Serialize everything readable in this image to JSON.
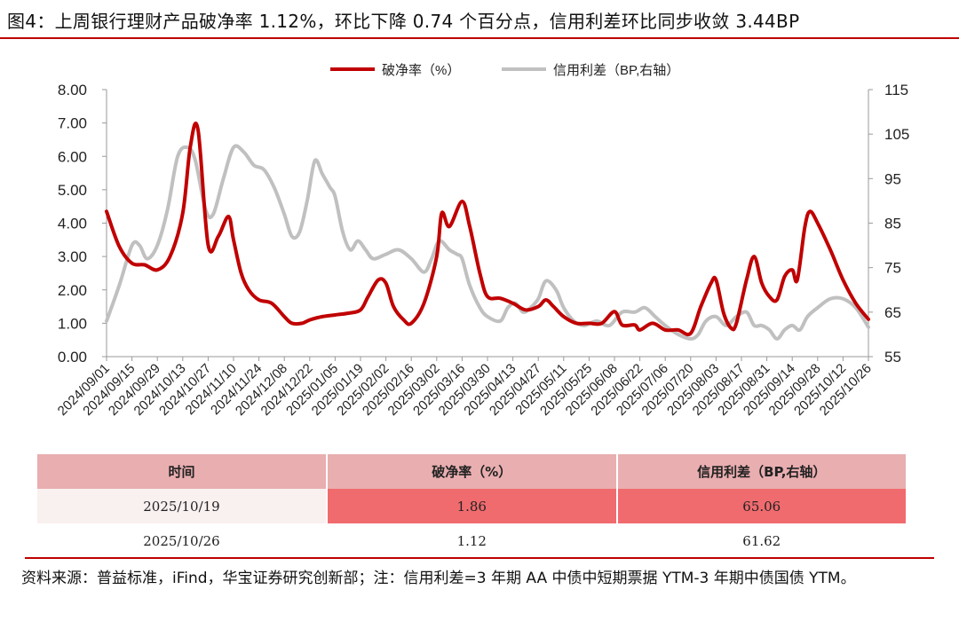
{
  "title": "图4：上周银行理财产品破净率 1.12%，环比下降 0.74 个百分点，信用利差环比同步收敛 3.44BP",
  "chart_data": {
    "type": "line",
    "left_axis": {
      "ylim": [
        0,
        8
      ],
      "ticks": [
        "0.00",
        "1.00",
        "2.00",
        "3.00",
        "4.00",
        "5.00",
        "6.00",
        "7.00",
        "8.00"
      ]
    },
    "right_axis": {
      "ylim": [
        55,
        115
      ],
      "ticks": [
        "55",
        "65",
        "75",
        "85",
        "95",
        "105",
        "115"
      ]
    },
    "x_tick_labels": [
      "2024/09/01",
      "2024/09/15",
      "2024/09/29",
      "2024/10/13",
      "2024/10/27",
      "2024/11/10",
      "2024/11/24",
      "2024/12/08",
      "2024/12/22",
      "2025/01/05",
      "2025/01/19",
      "2025/02/02",
      "2025/02/16",
      "2025/03/02",
      "2025/03/16",
      "2025/03/30",
      "2025/04/13",
      "2025/04/27",
      "2025/05/11",
      "2025/05/25",
      "2025/06/08",
      "2025/06/22",
      "2025/07/06",
      "2025/07/20",
      "2025/08/03",
      "2025/08/17",
      "2025/08/31",
      "2025/09/14",
      "2025/09/28",
      "2025/10/12",
      "2025/10/26"
    ],
    "x_label_positions_are_ticks": true,
    "series": [
      {
        "name": "破净率（%）",
        "axis": "left",
        "color": "#c00000",
        "points": [
          [
            0,
            4.35
          ],
          [
            0.5,
            3.3
          ],
          [
            1,
            2.8
          ],
          [
            1.5,
            2.75
          ],
          [
            2,
            2.6
          ],
          [
            2.5,
            3.0
          ],
          [
            3,
            4.3
          ],
          [
            3.3,
            6.3
          ],
          [
            3.6,
            6.8
          ],
          [
            4,
            3.35
          ],
          [
            4.4,
            3.6
          ],
          [
            4.8,
            4.2
          ],
          [
            5,
            3.5
          ],
          [
            5.3,
            2.5
          ],
          [
            5.6,
            2.0
          ],
          [
            6,
            1.7
          ],
          [
            6.5,
            1.6
          ],
          [
            7,
            1.2
          ],
          [
            7.3,
            1.0
          ],
          [
            7.7,
            1.0
          ],
          [
            8,
            1.1
          ],
          [
            8.5,
            1.2
          ],
          [
            9,
            1.25
          ],
          [
            9.5,
            1.3
          ],
          [
            10,
            1.4
          ],
          [
            10.3,
            1.8
          ],
          [
            10.7,
            2.3
          ],
          [
            11,
            2.2
          ],
          [
            11.3,
            1.5
          ],
          [
            11.7,
            1.1
          ],
          [
            12,
            1.0
          ],
          [
            12.5,
            1.6
          ],
          [
            13,
            3.0
          ],
          [
            13.2,
            4.3
          ],
          [
            13.5,
            3.9
          ],
          [
            14,
            4.65
          ],
          [
            14.3,
            3.9
          ],
          [
            14.7,
            2.5
          ],
          [
            15,
            1.8
          ],
          [
            15.5,
            1.75
          ],
          [
            16,
            1.6
          ],
          [
            16.5,
            1.4
          ],
          [
            17,
            1.5
          ],
          [
            17.3,
            1.7
          ],
          [
            17.6,
            1.5
          ],
          [
            18,
            1.2
          ],
          [
            18.5,
            1.0
          ],
          [
            19,
            1.0
          ],
          [
            19.5,
            1.0
          ],
          [
            20,
            1.35
          ],
          [
            20.3,
            0.95
          ],
          [
            20.8,
            0.95
          ],
          [
            21,
            0.8
          ],
          [
            21.5,
            1.0
          ],
          [
            22,
            0.8
          ],
          [
            22.5,
            0.8
          ],
          [
            23,
            0.7
          ],
          [
            23.4,
            1.5
          ],
          [
            23.8,
            2.2
          ],
          [
            24,
            2.3
          ],
          [
            24.3,
            1.3
          ],
          [
            24.6,
            0.85
          ],
          [
            24.8,
            1.0
          ],
          [
            25.2,
            2.3
          ],
          [
            25.5,
            3.0
          ],
          [
            25.8,
            2.2
          ],
          [
            26.1,
            1.8
          ],
          [
            26.4,
            1.7
          ],
          [
            26.7,
            2.4
          ],
          [
            27,
            2.6
          ],
          [
            27.2,
            2.3
          ],
          [
            27.5,
            3.9
          ],
          [
            27.7,
            4.35
          ],
          [
            28,
            4.0
          ],
          [
            28.5,
            3.2
          ],
          [
            29,
            2.3
          ],
          [
            29.5,
            1.6
          ],
          [
            30,
            1.12
          ]
        ]
      },
      {
        "name": "信用利差（BP,右轴）",
        "axis": "right",
        "color": "#c0c0c0",
        "points": [
          [
            0,
            63
          ],
          [
            0.5,
            71
          ],
          [
            1,
            80
          ],
          [
            1.3,
            80
          ],
          [
            1.6,
            77
          ],
          [
            2,
            80
          ],
          [
            2.4,
            88
          ],
          [
            2.8,
            100
          ],
          [
            3.2,
            102
          ],
          [
            3.5,
            99
          ],
          [
            3.9,
            88
          ],
          [
            4.2,
            87
          ],
          [
            4.6,
            95
          ],
          [
            5,
            102
          ],
          [
            5.4,
            101
          ],
          [
            5.8,
            98
          ],
          [
            6.2,
            97
          ],
          [
            6.6,
            93
          ],
          [
            7,
            87
          ],
          [
            7.3,
            82
          ],
          [
            7.6,
            83
          ],
          [
            7.9,
            90
          ],
          [
            8.2,
            99
          ],
          [
            8.5,
            96
          ],
          [
            8.8,
            93
          ],
          [
            9,
            91
          ],
          [
            9.3,
            83
          ],
          [
            9.6,
            79
          ],
          [
            9.9,
            81
          ],
          [
            10.2,
            79
          ],
          [
            10.5,
            77
          ],
          [
            11,
            78
          ],
          [
            11.5,
            79
          ],
          [
            12,
            77
          ],
          [
            12.5,
            74
          ],
          [
            12.8,
            77
          ],
          [
            13.1,
            81
          ],
          [
            13.5,
            79
          ],
          [
            13.8,
            78
          ],
          [
            14,
            77
          ],
          [
            14.3,
            71
          ],
          [
            14.7,
            66
          ],
          [
            15,
            64
          ],
          [
            15.5,
            63
          ],
          [
            15.8,
            66
          ],
          [
            16.1,
            67
          ],
          [
            16.4,
            65
          ],
          [
            16.7,
            66
          ],
          [
            17,
            68
          ],
          [
            17.3,
            72
          ],
          [
            17.7,
            70
          ],
          [
            18,
            66
          ],
          [
            18.4,
            63
          ],
          [
            18.8,
            62
          ],
          [
            19.3,
            63
          ],
          [
            19.8,
            62
          ],
          [
            20.3,
            65
          ],
          [
            20.8,
            65
          ],
          [
            21.2,
            66
          ],
          [
            21.6,
            64
          ],
          [
            22,
            62
          ],
          [
            22.5,
            60
          ],
          [
            23,
            59
          ],
          [
            23.3,
            60
          ],
          [
            23.6,
            63
          ],
          [
            24,
            64
          ],
          [
            24.4,
            62
          ],
          [
            24.8,
            64
          ],
          [
            25.2,
            65
          ],
          [
            25.5,
            62
          ],
          [
            25.8,
            62
          ],
          [
            26.1,
            61
          ],
          [
            26.4,
            59
          ],
          [
            26.7,
            61
          ],
          [
            27,
            62
          ],
          [
            27.3,
            61
          ],
          [
            27.6,
            64
          ],
          [
            28,
            66
          ],
          [
            28.5,
            68
          ],
          [
            29,
            68
          ],
          [
            29.5,
            66
          ],
          [
            30,
            61.62
          ]
        ]
      }
    ]
  },
  "table": {
    "headers": [
      "时间",
      "破净率（%）",
      "信用利差（BP,右轴）"
    ],
    "rows": [
      [
        "2025/10/19",
        "1.86",
        "65.06"
      ],
      [
        "2025/10/26",
        "1.12",
        "61.62"
      ]
    ]
  },
  "source": "资料来源：普益标准，iFind，华宝证券研究创新部；注：信用利差=3 年期 AA 中债中短期票据 YTM-3 年期中债国债 YTM。"
}
